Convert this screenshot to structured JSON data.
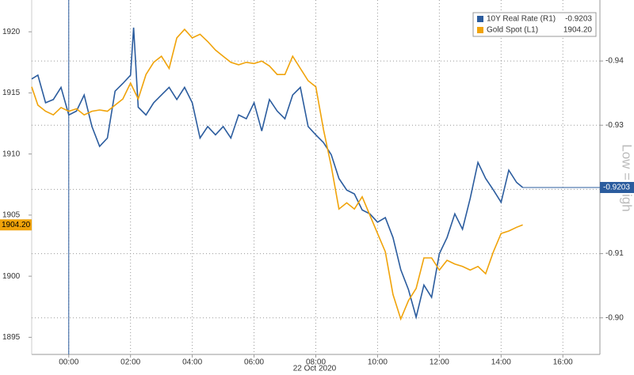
{
  "chart_data": {
    "type": "line",
    "xlabel": "22 Oct 2020",
    "annotation": "Low = High",
    "xlim": [
      -1.2,
      17.2
    ],
    "xticks": [
      {
        "value": 0,
        "label": "00:00"
      },
      {
        "value": 2,
        "label": "02:00"
      },
      {
        "value": 4,
        "label": "04:00"
      },
      {
        "value": 6,
        "label": "06:00"
      },
      {
        "value": 8,
        "label": "08:00"
      },
      {
        "value": 10,
        "label": "10:00"
      },
      {
        "value": 12,
        "label": "12:00"
      },
      {
        "value": 14,
        "label": "14:00"
      },
      {
        "value": 16,
        "label": "16:00"
      }
    ],
    "ylim": [
      1893.6,
      1922.6
    ],
    "yticks": [
      1895,
      1900,
      1905,
      1910,
      1915,
      1920
    ],
    "y2lim": [
      -0.8943,
      -0.9495
    ],
    "y2ticks": [
      {
        "value": -0.9,
        "label": "-0.90"
      },
      -0.91,
      -0.92,
      -0.93,
      -0.94
    ],
    "grid": true,
    "legend": "upper right",
    "series": [
      {
        "name": "10Y Real Rate (R1)",
        "color": "#2b5c9e",
        "axis": "y2",
        "last_label": "-0.9203",
        "x": [
          -1.2,
          -1,
          -0.75,
          -0.5,
          -0.25,
          0,
          0.25,
          0.5,
          0.75,
          1,
          1.25,
          1.5,
          1.75,
          2,
          2.1,
          2.25,
          2.5,
          2.75,
          3,
          3.25,
          3.5,
          3.75,
          4,
          4.25,
          4.5,
          4.75,
          5,
          5.25,
          5.5,
          5.75,
          6,
          6.25,
          6.5,
          6.75,
          7,
          7.25,
          7.5,
          7.75,
          8,
          8.25,
          8.5,
          8.75,
          9,
          9.25,
          9.5,
          9.75,
          10,
          10.25,
          10.5,
          10.75,
          11,
          11.25,
          11.5,
          11.75,
          12,
          12.25,
          12.5,
          12.75,
          13,
          13.25,
          13.5,
          13.75,
          14,
          14.25,
          14.5,
          14.7
        ],
        "values": [
          -0.9372,
          -0.9378,
          -0.9335,
          -0.934,
          -0.9359,
          -0.9316,
          -0.9322,
          -0.9347,
          -0.9298,
          -0.9267,
          -0.928,
          -0.9353,
          -0.9365,
          -0.9378,
          -0.9452,
          -0.9328,
          -0.9316,
          -0.9335,
          -0.9347,
          -0.9359,
          -0.934,
          -0.9359,
          -0.9335,
          -0.928,
          -0.9298,
          -0.9285,
          -0.9298,
          -0.928,
          -0.9316,
          -0.931,
          -0.9335,
          -0.9291,
          -0.934,
          -0.9322,
          -0.931,
          -0.9347,
          -0.9359,
          -0.9298,
          -0.9285,
          -0.9273,
          -0.9254,
          -0.9217,
          -0.9199,
          -0.9193,
          -0.9168,
          -0.9162,
          -0.9149,
          -0.9156,
          -0.9125,
          -0.9075,
          -0.9044,
          -0.9001,
          -0.9051,
          -0.9032,
          -0.91,
          -0.9125,
          -0.9162,
          -0.9138,
          -0.9186,
          -0.9242,
          -0.9217,
          -0.9199,
          -0.918,
          -0.923,
          -0.9211,
          -0.9203
        ]
      },
      {
        "name": "Gold Spot (L1)",
        "color": "#f0a30a",
        "axis": "y",
        "last_label": "1904.20",
        "x": [
          -1.2,
          -1,
          -0.75,
          -0.5,
          -0.25,
          0,
          0.25,
          0.5,
          0.75,
          1,
          1.25,
          1.5,
          1.75,
          2,
          2.25,
          2.5,
          2.75,
          3,
          3.25,
          3.5,
          3.75,
          4,
          4.25,
          4.5,
          4.75,
          5,
          5.25,
          5.5,
          5.75,
          6,
          6.25,
          6.5,
          6.75,
          7,
          7.25,
          7.5,
          7.75,
          8,
          8.25,
          8.5,
          8.75,
          9,
          9.25,
          9.5,
          9.75,
          10,
          10.25,
          10.5,
          10.75,
          11,
          11.25,
          11.5,
          11.75,
          12,
          12.25,
          12.5,
          12.75,
          13,
          13.25,
          13.5,
          13.75,
          14,
          14.25,
          14.5,
          14.7
        ],
        "values": [
          1915.5,
          1914,
          1913.5,
          1913.2,
          1913.8,
          1913.5,
          1913.7,
          1913.2,
          1913.5,
          1913.6,
          1913.5,
          1914,
          1914.5,
          1915.8,
          1914.5,
          1916.5,
          1917.5,
          1918,
          1917,
          1919.5,
          1920.2,
          1919.5,
          1919.8,
          1919.2,
          1918.5,
          1918,
          1917.5,
          1917.3,
          1917.5,
          1917.4,
          1917.6,
          1917.2,
          1916.5,
          1916.5,
          1918,
          1917,
          1916,
          1915.5,
          1912,
          1909,
          1905.5,
          1906,
          1905.5,
          1906.5,
          1905,
          1903.5,
          1902,
          1898.5,
          1896.5,
          1898,
          1899,
          1901.5,
          1901.5,
          1900.5,
          1901.3,
          1901,
          1900.8,
          1900.5,
          1900.8,
          1900.2,
          1902,
          1903.5,
          1903.7,
          1904,
          1904.2
        ]
      }
    ]
  }
}
